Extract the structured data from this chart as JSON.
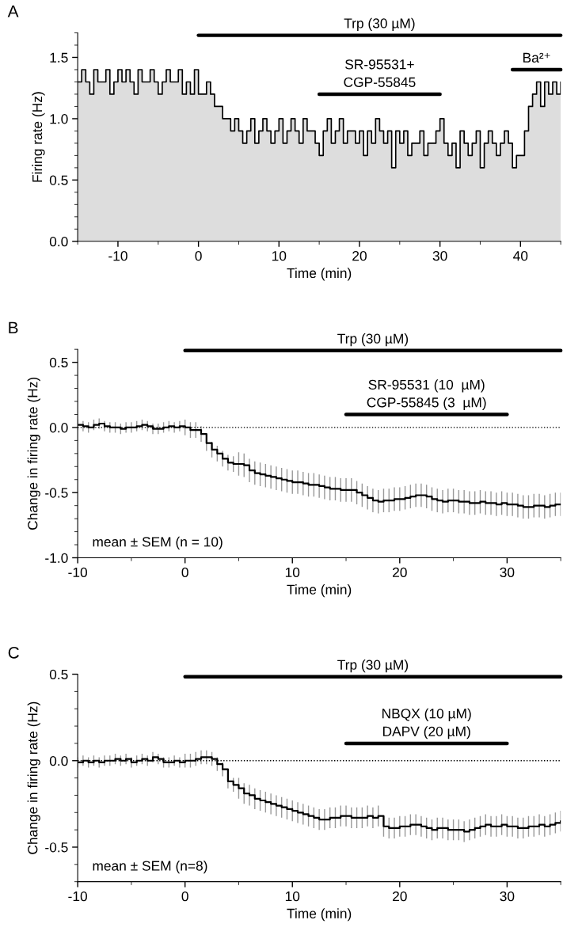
{
  "chart_data": [
    {
      "type": "step",
      "title": "A",
      "xlabel": "Time (min)",
      "ylabel": "Firing rate (Hz)",
      "xlim": [
        -15,
        45
      ],
      "ylim": [
        0,
        1.7
      ],
      "xticks": [
        -10,
        0,
        10,
        20,
        30,
        40
      ],
      "yticks": [
        {
          "value": 0,
          "label": "0.0"
        },
        0.5,
        {
          "value": 1,
          "label": "1.0"
        },
        1.5
      ],
      "x": [
        -15,
        -14.5,
        -14,
        -13.5,
        -13,
        -12.5,
        -12,
        -11.5,
        -11,
        -10.5,
        -10,
        -9.5,
        -9,
        -8.5,
        -8,
        -7.5,
        -7,
        -6.5,
        -6,
        -5.5,
        -5,
        -4.5,
        -4,
        -3.5,
        -3,
        -2.5,
        -2,
        -1.5,
        -1,
        -0.5,
        0,
        0.5,
        1,
        1.5,
        2,
        2.5,
        3,
        3.5,
        4,
        4.5,
        5,
        5.5,
        6,
        6.5,
        7,
        7.5,
        8,
        8.5,
        9,
        9.5,
        10,
        10.5,
        11,
        11.5,
        12,
        12.5,
        13,
        13.5,
        14,
        14.5,
        15,
        15.5,
        16,
        16.5,
        17,
        17.5,
        18,
        18.5,
        19,
        19.5,
        20,
        20.5,
        21,
        21.5,
        22,
        22.5,
        23,
        23.5,
        24,
        24.5,
        25,
        25.5,
        26,
        26.5,
        27,
        27.5,
        28,
        28.5,
        29,
        29.5,
        30,
        30.5,
        31,
        31.5,
        32,
        32.5,
        33,
        33.5,
        34,
        34.5,
        35,
        35.5,
        36,
        36.5,
        37,
        37.5,
        38,
        38.5,
        39,
        39.5,
        40,
        40.5,
        41,
        41.5,
        42,
        42.5,
        43,
        43.5,
        44,
        44.5,
        45
      ],
      "series": [
        {
          "type": "area",
          "color": "#dddddd",
          "values": [
            1.3,
            1.4,
            1.3,
            1.2,
            1.4,
            1.3,
            1.3,
            1.4,
            1.2,
            1.3,
            1.4,
            1.3,
            1.4,
            1.3,
            1.2,
            1.4,
            1.3,
            1.3,
            1.4,
            1.3,
            1.2,
            1.3,
            1.4,
            1.3,
            1.3,
            1.4,
            1.2,
            1.3,
            1.2,
            1.4,
            1.2,
            1.2,
            1.3,
            1.2,
            1.1,
            1.1,
            1.0,
            1.0,
            0.9,
            1.0,
            0.9,
            0.8,
            0.9,
            1.0,
            0.8,
            0.9,
            1.0,
            0.9,
            0.8,
            0.9,
            1.0,
            0.8,
            0.9,
            1.0,
            0.9,
            0.8,
            1.0,
            0.9,
            0.9,
            0.8,
            0.7,
            0.9,
            1.0,
            0.8,
            0.9,
            1.0,
            0.8,
            0.9,
            0.9,
            0.8,
            0.9,
            0.7,
            0.9,
            0.8,
            1.0,
            0.9,
            0.8,
            0.9,
            0.6,
            0.9,
            0.8,
            0.9,
            0.7,
            0.8,
            0.8,
            0.9,
            0.7,
            0.8,
            0.8,
            0.9,
            1.0,
            0.8,
            0.7,
            0.8,
            0.6,
            0.9,
            0.8,
            0.7,
            0.8,
            0.9,
            0.6,
            0.8,
            0.9,
            0.8,
            0.7,
            0.8,
            0.9,
            0.8,
            0.6,
            0.7,
            0.7,
            0.9,
            1.1,
            1.2,
            1.3,
            1.1,
            1.3,
            1.2,
            1.3,
            1.2,
            1.3
          ]
        },
        {
          "type": "step",
          "color": "#000000",
          "values": [
            1.3,
            1.4,
            1.3,
            1.2,
            1.4,
            1.3,
            1.3,
            1.4,
            1.2,
            1.3,
            1.4,
            1.3,
            1.4,
            1.3,
            1.2,
            1.4,
            1.3,
            1.3,
            1.4,
            1.3,
            1.2,
            1.3,
            1.4,
            1.3,
            1.3,
            1.4,
            1.2,
            1.3,
            1.2,
            1.4,
            1.2,
            1.2,
            1.3,
            1.2,
            1.1,
            1.1,
            1.0,
            1.0,
            0.9,
            1.0,
            0.9,
            0.8,
            0.9,
            1.0,
            0.8,
            0.9,
            1.0,
            0.9,
            0.8,
            0.9,
            1.0,
            0.8,
            0.9,
            1.0,
            0.9,
            0.8,
            1.0,
            0.9,
            0.9,
            0.8,
            0.7,
            0.9,
            1.0,
            0.8,
            0.9,
            1.0,
            0.8,
            0.9,
            0.9,
            0.8,
            0.9,
            0.7,
            0.9,
            0.8,
            1.0,
            0.9,
            0.8,
            0.9,
            0.6,
            0.9,
            0.8,
            0.9,
            0.7,
            0.8,
            0.8,
            0.9,
            0.7,
            0.8,
            0.8,
            0.9,
            1.0,
            0.8,
            0.7,
            0.8,
            0.6,
            0.9,
            0.8,
            0.7,
            0.8,
            0.9,
            0.6,
            0.8,
            0.9,
            0.8,
            0.7,
            0.8,
            0.9,
            0.8,
            0.6,
            0.7,
            0.7,
            0.9,
            1.1,
            1.2,
            1.3,
            1.1,
            1.3,
            1.2,
            1.3,
            1.2,
            1.3
          ]
        },
        {
          "type": "line",
          "name": "Trp (30 µM)",
          "color": "#000000",
          "x": [
            0,
            45
          ],
          "values": [
            1.68,
            1.68
          ]
        },
        {
          "type": "line",
          "name": "SR-95531+\nCGP-55845",
          "color": "#000000",
          "x": [
            15,
            30
          ],
          "values": [
            1.2,
            1.2
          ]
        },
        {
          "type": "line",
          "name": "Ba²⁺",
          "color": "#000000",
          "x": [
            39,
            45
          ],
          "values": [
            1.4,
            1.4
          ]
        }
      ]
    },
    {
      "type": "step",
      "title": "B",
      "xlabel": "Time (min)",
      "ylabel": "Change in firing rate (Hz)",
      "xlim": [
        -10,
        35
      ],
      "ylim": [
        -1.0,
        0.6
      ],
      "xticks": [
        -10,
        0,
        10,
        20,
        30
      ],
      "yticks": [
        {
          "value": -1,
          "label": "-1.0"
        },
        -0.5,
        {
          "value": 0,
          "label": "0.0"
        },
        0.5
      ],
      "x": [
        -10,
        -9.5,
        -9,
        -8.5,
        -8,
        -7.5,
        -7,
        -6.5,
        -6,
        -5.5,
        -5,
        -4.5,
        -4,
        -3.5,
        -3,
        -2.5,
        -2,
        -1.5,
        -1,
        -0.5,
        0,
        0.5,
        1,
        1.5,
        2,
        2.5,
        3,
        3.5,
        4,
        4.5,
        5,
        5.5,
        6,
        6.5,
        7,
        7.5,
        8,
        8.5,
        9,
        9.5,
        10,
        10.5,
        11,
        11.5,
        12,
        12.5,
        13,
        13.5,
        14,
        14.5,
        15,
        15.5,
        16,
        16.5,
        17,
        17.5,
        18,
        18.5,
        19,
        19.5,
        20,
        20.5,
        21,
        21.5,
        22,
        22.5,
        23,
        23.5,
        24,
        24.5,
        25,
        25.5,
        26,
        26.5,
        27,
        27.5,
        28,
        28.5,
        29,
        29.5,
        30,
        30.5,
        31,
        31.5,
        32,
        32.5,
        33,
        33.5,
        34,
        34.5,
        35
      ],
      "series": [
        {
          "color": "#000000",
          "values": [
            0.02,
            0.01,
            0.0,
            0.02,
            0.03,
            0.01,
            0.0,
            0.0,
            -0.01,
            0.0,
            0.0,
            0.01,
            0.02,
            0.01,
            -0.01,
            -0.01,
            0.0,
            0.01,
            0.0,
            0.01,
            0.0,
            -0.02,
            -0.02,
            -0.05,
            -0.12,
            -0.17,
            -0.2,
            -0.24,
            -0.27,
            -0.28,
            -0.28,
            -0.29,
            -0.33,
            -0.35,
            -0.36,
            -0.37,
            -0.38,
            -0.39,
            -0.4,
            -0.41,
            -0.42,
            -0.42,
            -0.43,
            -0.44,
            -0.44,
            -0.45,
            -0.46,
            -0.47,
            -0.47,
            -0.48,
            -0.48,
            -0.48,
            -0.5,
            -0.52,
            -0.54,
            -0.56,
            -0.57,
            -0.56,
            -0.56,
            -0.55,
            -0.55,
            -0.54,
            -0.53,
            -0.52,
            -0.52,
            -0.53,
            -0.55,
            -0.56,
            -0.57,
            -0.56,
            -0.56,
            -0.57,
            -0.57,
            -0.58,
            -0.58,
            -0.57,
            -0.58,
            -0.58,
            -0.59,
            -0.58,
            -0.59,
            -0.59,
            -0.6,
            -0.61,
            -0.61,
            -0.6,
            -0.6,
            -0.61,
            -0.6,
            -0.59,
            -0.59
          ],
          "errors": [
            0.04,
            0.04,
            0.04,
            0.04,
            0.04,
            0.04,
            0.04,
            0.04,
            0.04,
            0.04,
            0.04,
            0.04,
            0.04,
            0.04,
            0.04,
            0.04,
            0.04,
            0.04,
            0.04,
            0.04,
            0.06,
            0.06,
            0.06,
            0.06,
            0.06,
            0.06,
            0.06,
            0.06,
            0.06,
            0.06,
            0.09,
            0.09,
            0.09,
            0.09,
            0.09,
            0.09,
            0.09,
            0.09,
            0.09,
            0.09,
            0.09,
            0.09,
            0.09,
            0.09,
            0.09,
            0.09,
            0.09,
            0.09,
            0.09,
            0.09,
            0.09,
            0.09,
            0.09,
            0.09,
            0.09,
            0.09,
            0.09,
            0.09,
            0.09,
            0.09,
            0.09,
            0.09,
            0.09,
            0.09,
            0.09,
            0.09,
            0.09,
            0.09,
            0.09,
            0.09,
            0.09,
            0.09,
            0.09,
            0.09,
            0.09,
            0.09,
            0.09,
            0.09,
            0.09,
            0.09,
            0.09,
            0.09,
            0.09,
            0.09,
            0.09,
            0.09,
            0.09,
            0.09,
            0.09,
            0.09,
            0.09
          ]
        },
        {
          "type": "line",
          "name": "Trp (30 µM)",
          "color": "#000000",
          "x": [
            0,
            35
          ],
          "values": [
            0.59,
            0.59
          ]
        },
        {
          "type": "line",
          "name": "SR-95531 (10  µM)\nCGP-55845 (3  µM)",
          "color": "#000000",
          "x": [
            15,
            30
          ],
          "values": [
            0.1,
            0.1
          ]
        }
      ],
      "ref_lines": [
        {
          "axis": "y",
          "value": 0,
          "line_style": "dotted",
          "color": "#000000"
        }
      ],
      "annotations": [
        "mean ± SEM (n = 10)"
      ]
    },
    {
      "type": "step",
      "title": "C",
      "xlabel": "Time (min)",
      "ylabel": "Change in firing rate (Hz)",
      "xlim": [
        -10,
        35
      ],
      "ylim": [
        -0.7,
        0.5
      ],
      "xticks": [
        -10,
        0,
        10,
        20,
        30
      ],
      "yticks": [
        -0.5,
        {
          "value": 0,
          "label": "0.0"
        },
        0.5
      ],
      "x": [
        -10,
        -9.5,
        -9,
        -8.5,
        -8,
        -7.5,
        -7,
        -6.5,
        -6,
        -5.5,
        -5,
        -4.5,
        -4,
        -3.5,
        -3,
        -2.5,
        -2,
        -1.5,
        -1,
        -0.5,
        0,
        0.5,
        1,
        1.5,
        2,
        2.5,
        3,
        3.5,
        4,
        4.5,
        5,
        5.5,
        6,
        6.5,
        7,
        7.5,
        8,
        8.5,
        9,
        9.5,
        10,
        10.5,
        11,
        11.5,
        12,
        12.5,
        13,
        13.5,
        14,
        14.5,
        15,
        15.5,
        16,
        16.5,
        17,
        17.5,
        18,
        18.5,
        19,
        19.5,
        20,
        20.5,
        21,
        21.5,
        22,
        22.5,
        23,
        23.5,
        24,
        24.5,
        25,
        25.5,
        26,
        26.5,
        27,
        27.5,
        28,
        28.5,
        29,
        29.5,
        30,
        30.5,
        31,
        31.5,
        32,
        32.5,
        33,
        33.5,
        34,
        34.5,
        35
      ],
      "series": [
        {
          "color": "#000000",
          "values": [
            -0.01,
            0.0,
            -0.01,
            0.0,
            -0.01,
            0.0,
            0.0,
            0.01,
            0.0,
            0.01,
            -0.01,
            0.0,
            0.01,
            0.0,
            0.02,
            0.01,
            -0.01,
            -0.01,
            0.0,
            -0.01,
            0.0,
            0.0,
            0.01,
            0.02,
            0.02,
            0.01,
            -0.02,
            -0.05,
            -0.12,
            -0.14,
            -0.16,
            -0.19,
            -0.2,
            -0.22,
            -0.23,
            -0.24,
            -0.25,
            -0.26,
            -0.27,
            -0.28,
            -0.29,
            -0.3,
            -0.31,
            -0.32,
            -0.33,
            -0.34,
            -0.34,
            -0.33,
            -0.33,
            -0.32,
            -0.32,
            -0.33,
            -0.33,
            -0.33,
            -0.32,
            -0.33,
            -0.32,
            -0.38,
            -0.39,
            -0.39,
            -0.38,
            -0.38,
            -0.37,
            -0.37,
            -0.38,
            -0.39,
            -0.4,
            -0.39,
            -0.39,
            -0.4,
            -0.4,
            -0.4,
            -0.41,
            -0.4,
            -0.39,
            -0.38,
            -0.37,
            -0.38,
            -0.38,
            -0.37,
            -0.38,
            -0.38,
            -0.39,
            -0.39,
            -0.38,
            -0.38,
            -0.37,
            -0.38,
            -0.37,
            -0.36,
            -0.35
          ],
          "errors": [
            0.03,
            0.03,
            0.03,
            0.03,
            0.03,
            0.03,
            0.03,
            0.03,
            0.03,
            0.03,
            0.03,
            0.03,
            0.03,
            0.03,
            0.03,
            0.03,
            0.03,
            0.03,
            0.03,
            0.03,
            0.04,
            0.04,
            0.04,
            0.04,
            0.04,
            0.04,
            0.04,
            0.04,
            0.04,
            0.04,
            0.06,
            0.06,
            0.06,
            0.06,
            0.06,
            0.06,
            0.06,
            0.06,
            0.06,
            0.06,
            0.06,
            0.06,
            0.06,
            0.06,
            0.06,
            0.06,
            0.06,
            0.06,
            0.06,
            0.06,
            0.06,
            0.06,
            0.06,
            0.06,
            0.06,
            0.06,
            0.06,
            0.06,
            0.06,
            0.06,
            0.06,
            0.06,
            0.06,
            0.06,
            0.06,
            0.06,
            0.06,
            0.06,
            0.06,
            0.06,
            0.06,
            0.06,
            0.06,
            0.06,
            0.06,
            0.06,
            0.06,
            0.06,
            0.06,
            0.06,
            0.06,
            0.06,
            0.06,
            0.06,
            0.06,
            0.06,
            0.06,
            0.06,
            0.06,
            0.06,
            0.06
          ]
        },
        {
          "type": "line",
          "name": "Trp (30 µM)",
          "color": "#000000",
          "x": [
            0,
            35
          ],
          "values": [
            0.485,
            0.485
          ]
        },
        {
          "type": "line",
          "name": "NBQX (10 µM)\nDAPV (20 µM)",
          "color": "#000000",
          "x": [
            15,
            30
          ],
          "values": [
            0.1,
            0.1
          ]
        }
      ],
      "ref_lines": [
        {
          "axis": "y",
          "value": 0,
          "line_style": "dotted",
          "color": "#000000"
        }
      ],
      "annotations": [
        "mean ± SEM (n=8)"
      ]
    }
  ]
}
